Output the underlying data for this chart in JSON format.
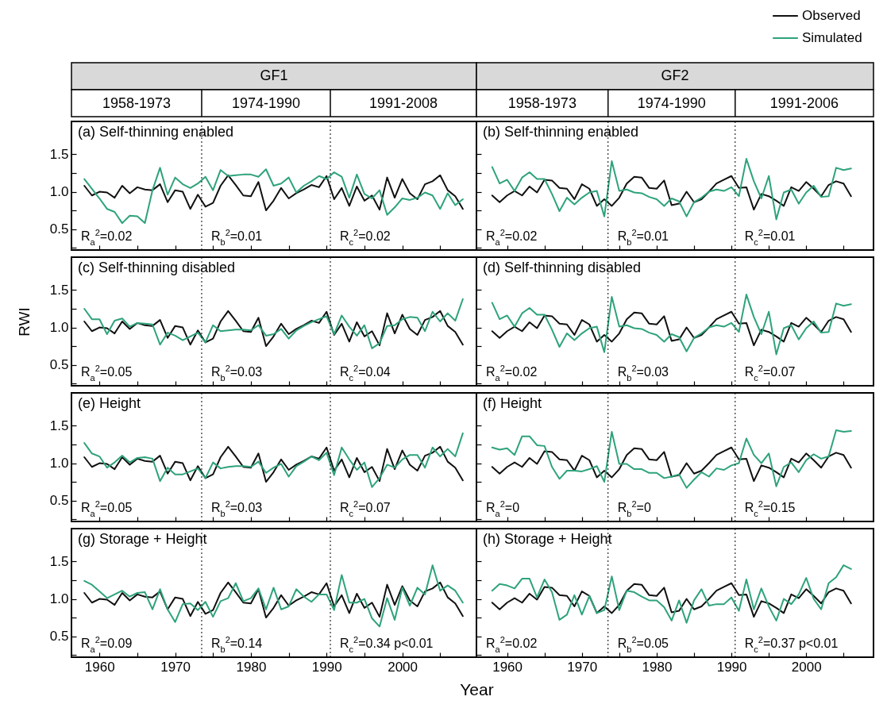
{
  "chart_data": [
    {
      "type": "line",
      "title": "GF1",
      "subtitle": "(a) Self-thinning enabled",
      "tick_labels": "y",
      "annotations": [
        "1958-1973",
        "1974-1990",
        "1991-2008",
        "R$_{a}$$^{2}$=0.02",
        "R$_{b}$$^{2}$=0.01",
        "R$_{c}$$^{2}$=0.02"
      ],
      "x": [
        1958,
        1959,
        1960,
        1961,
        1962,
        1963,
        1964,
        1965,
        1966,
        1967,
        1968,
        1969,
        1970,
        1971,
        1972,
        1973,
        1974,
        1975,
        1976,
        1977,
        1978,
        1979,
        1980,
        1981,
        1982,
        1983,
        1984,
        1985,
        1986,
        1987,
        1988,
        1989,
        1990,
        1991,
        1992,
        1993,
        1994,
        1995,
        1996,
        1997,
        1998,
        1999,
        2000,
        2001,
        2002,
        2003,
        2004,
        2005,
        2006,
        2007,
        2008
      ],
      "series": [
        {
          "color": "#111111",
          "values": [
            1.08,
            0.95,
            1.0,
            0.99,
            0.92,
            1.08,
            0.98,
            1.06,
            1.03,
            1.02,
            1.1,
            0.86,
            1.02,
            1.0,
            0.77,
            0.96,
            0.8,
            0.85,
            1.08,
            1.22,
            1.09,
            0.95,
            0.94,
            1.13,
            0.75,
            0.88,
            1.05,
            0.91,
            0.98,
            1.03,
            1.09,
            1.06,
            1.21,
            0.9,
            1.05,
            0.81,
            1.07,
            0.88,
            0.95,
            0.76,
            1.19,
            0.92,
            1.17,
            0.98,
            0.9,
            1.1,
            1.14,
            1.22,
            1.02,
            0.94,
            0.77
          ]
        },
        {
          "color": "#2ea37a",
          "values": [
            1.17,
            1.04,
            0.91,
            0.77,
            0.73,
            0.58,
            0.68,
            0.67,
            0.58,
            1.02,
            1.32,
            0.96,
            1.19,
            1.1,
            1.05,
            1.11,
            1.2,
            1.02,
            1.29,
            1.21,
            1.22,
            1.23,
            1.23,
            1.2,
            1.3,
            1.08,
            1.11,
            1.19,
            0.99,
            1.08,
            1.14,
            1.21,
            1.17,
            1.26,
            1.2,
            0.92,
            1.23,
            0.97,
            0.91,
            1.02,
            0.69,
            0.79,
            0.91,
            0.89,
            0.92,
            0.99,
            0.95,
            0.77,
            0.98,
            0.82,
            0.9
          ]
        }
      ],
      "ref_lines": [
        {
          "axis": "x",
          "value": 1973.5,
          "line_style": "dotted"
        },
        {
          "axis": "x",
          "value": 1990.5,
          "line_style": "dotted"
        }
      ],
      "xlim": [
        1956.3,
        2009.8
      ],
      "xticks": [
        {
          "value": 1960,
          "label": null
        },
        {
          "value": 1965,
          "label": null
        },
        {
          "value": 1970,
          "label": null
        },
        {
          "value": 1975,
          "label": null
        },
        {
          "value": 1980,
          "label": null
        },
        {
          "value": 1985,
          "label": null
        },
        {
          "value": 1990,
          "label": null
        },
        {
          "value": 1995,
          "label": null
        },
        {
          "value": 2000,
          "label": null
        },
        {
          "value": 2005,
          "label": null
        }
      ],
      "ylim": [
        0.22,
        1.94
      ],
      "yticks": [
        {
          "value": 0.25,
          "label": null
        },
        {
          "value": 0.5,
          "label": "0.5"
        },
        {
          "value": 0.75,
          "label": null
        },
        {
          "value": 1,
          "label": "1.0"
        },
        {
          "value": 1.25,
          "label": null
        },
        {
          "value": 1.5,
          "label": "1.5"
        }
      ]
    },
    {
      "type": "line",
      "title": "GF2",
      "subtitle": "(b) Self-thinning enabled",
      "legend": "top right",
      "tick_labels": false,
      "annotations": [
        "1958-1973",
        "1974-1990",
        "1991-2006",
        "R$_{a}$$^{2}$=0.02",
        "R$_{b}$$^{2}$=0.01",
        "R$_{c}$$^{2}$=0.01"
      ],
      "x": [
        1958,
        1959,
        1960,
        1961,
        1962,
        1963,
        1964,
        1965,
        1966,
        1967,
        1968,
        1969,
        1970,
        1971,
        1972,
        1973,
        1974,
        1975,
        1976,
        1977,
        1978,
        1979,
        1980,
        1981,
        1982,
        1983,
        1984,
        1985,
        1986,
        1987,
        1988,
        1989,
        1990,
        1991,
        1992,
        1993,
        1994,
        1995,
        1996,
        1997,
        1998,
        1999,
        2000,
        2001,
        2002,
        2003,
        2004,
        2005,
        2006
      ],
      "series": [
        {
          "name": "Observed",
          "color": "#111111",
          "values": [
            0.95,
            0.86,
            0.95,
            1.01,
            0.95,
            1.07,
            0.99,
            1.16,
            1.15,
            1.05,
            1.04,
            0.9,
            1.1,
            1.04,
            0.81,
            0.9,
            0.81,
            0.92,
            1.11,
            1.2,
            1.19,
            1.05,
            1.04,
            1.15,
            0.82,
            0.84,
            1.0,
            0.86,
            0.9,
            1.0,
            1.11,
            1.16,
            1.21,
            1.05,
            1.06,
            0.76,
            0.97,
            0.94,
            0.88,
            0.81,
            1.06,
            1.01,
            1.13,
            1.04,
            0.94,
            1.09,
            1.14,
            1.11,
            0.94
          ]
        },
        {
          "name": "Simulated",
          "color": "#2ea37a",
          "values": [
            1.33,
            1.11,
            1.16,
            1.01,
            1.19,
            1.26,
            1.17,
            1.17,
            0.97,
            0.74,
            0.92,
            0.83,
            0.92,
            0.99,
            1.01,
            0.67,
            1.41,
            1.01,
            1.03,
            0.99,
            0.98,
            0.93,
            0.9,
            0.81,
            0.91,
            0.87,
            0.67,
            0.86,
            0.92,
            1.0,
            1.03,
            1.01,
            1.06,
            0.94,
            1.44,
            1.14,
            0.91,
            1.21,
            0.63,
            0.99,
            1.03,
            0.84,
            0.99,
            1.08,
            0.93,
            0.94,
            1.32,
            1.29,
            1.31
          ]
        }
      ],
      "ref_lines": [
        {
          "axis": "x",
          "value": 1973.5,
          "line_style": "dotted"
        },
        {
          "axis": "x",
          "value": 1990.5,
          "line_style": "dotted"
        }
      ],
      "xlim": [
        1955.9,
        2009.0
      ],
      "xticks": [
        {
          "value": 1960,
          "label": null
        },
        {
          "value": 1965,
          "label": null
        },
        {
          "value": 1970,
          "label": null
        },
        {
          "value": 1975,
          "label": null
        },
        {
          "value": 1980,
          "label": null
        },
        {
          "value": 1985,
          "label": null
        },
        {
          "value": 1990,
          "label": null
        },
        {
          "value": 1995,
          "label": null
        },
        {
          "value": 2000,
          "label": null
        },
        {
          "value": 2005,
          "label": null
        }
      ],
      "ylim": [
        0.22,
        1.94
      ],
      "yticks": [
        {
          "value": 0.25,
          "label": null
        },
        {
          "value": 0.5,
          "label": null
        },
        {
          "value": 0.75,
          "label": null
        },
        {
          "value": 1,
          "label": null
        },
        {
          "value": 1.25,
          "label": null
        },
        {
          "value": 1.5,
          "label": null
        }
      ]
    },
    {
      "type": "line",
      "title": "(c) Self-thinning disabled",
      "ylabel": "RWI",
      "tick_labels": "y",
      "annotations": [
        "R$_{a}$$^{2}$=0.05",
        "R$_{b}$$^{2}$=0.03",
        "R$_{c}$$^{2}$=0.04"
      ],
      "x": [
        1958,
        1959,
        1960,
        1961,
        1962,
        1963,
        1964,
        1965,
        1966,
        1967,
        1968,
        1969,
        1970,
        1971,
        1972,
        1973,
        1974,
        1975,
        1976,
        1977,
        1978,
        1979,
        1980,
        1981,
        1982,
        1983,
        1984,
        1985,
        1986,
        1987,
        1988,
        1989,
        1990,
        1991,
        1992,
        1993,
        1994,
        1995,
        1996,
        1997,
        1998,
        1999,
        2000,
        2001,
        2002,
        2003,
        2004,
        2005,
        2006,
        2007,
        2008
      ],
      "series": [
        {
          "color": "#111111",
          "values": [
            1.08,
            0.95,
            1.0,
            0.99,
            0.92,
            1.08,
            0.98,
            1.06,
            1.03,
            1.02,
            1.1,
            0.86,
            1.02,
            1.0,
            0.77,
            0.96,
            0.8,
            0.85,
            1.08,
            1.22,
            1.09,
            0.95,
            0.94,
            1.13,
            0.75,
            0.88,
            1.05,
            0.91,
            0.98,
            1.03,
            1.09,
            1.06,
            1.21,
            0.9,
            1.05,
            0.81,
            1.07,
            0.88,
            0.95,
            0.76,
            1.19,
            0.92,
            1.17,
            0.98,
            0.9,
            1.1,
            1.14,
            1.22,
            1.02,
            0.94,
            0.77
          ]
        },
        {
          "color": "#2ea37a",
          "values": [
            1.25,
            1.11,
            1.11,
            0.91,
            1.09,
            1.12,
            1.01,
            1.06,
            1.05,
            1.04,
            0.77,
            0.93,
            0.89,
            0.83,
            0.88,
            0.93,
            0.8,
            1.03,
            0.95,
            0.96,
            0.97,
            0.97,
            0.96,
            1.03,
            0.89,
            0.91,
            0.98,
            0.85,
            0.96,
            1.02,
            1.07,
            1.11,
            1.15,
            0.91,
            1.16,
            1.01,
            0.89,
            1.03,
            0.72,
            0.79,
            1.02,
            1.03,
            1.11,
            1.14,
            1.13,
            0.95,
            1.21,
            1.08,
            1.19,
            1.09,
            1.38
          ]
        }
      ],
      "ref_lines": [
        {
          "axis": "x",
          "value": 1973.5,
          "line_style": "dotted"
        },
        {
          "axis": "x",
          "value": 1990.5,
          "line_style": "dotted"
        }
      ],
      "xlim": [
        1956.3,
        2009.8
      ],
      "xticks": [
        {
          "value": 1960,
          "label": null
        },
        {
          "value": 1965,
          "label": null
        },
        {
          "value": 1970,
          "label": null
        },
        {
          "value": 1975,
          "label": null
        },
        {
          "value": 1980,
          "label": null
        },
        {
          "value": 1985,
          "label": null
        },
        {
          "value": 1990,
          "label": null
        },
        {
          "value": 1995,
          "label": null
        },
        {
          "value": 2000,
          "label": null
        },
        {
          "value": 2005,
          "label": null
        }
      ],
      "ylim": [
        0.22,
        1.94
      ],
      "yticks": [
        {
          "value": 0.25,
          "label": null
        },
        {
          "value": 0.5,
          "label": "0.5"
        },
        {
          "value": 0.75,
          "label": null
        },
        {
          "value": 1,
          "label": "1.0"
        },
        {
          "value": 1.25,
          "label": null
        },
        {
          "value": 1.5,
          "label": "1.5"
        }
      ]
    },
    {
      "type": "line",
      "title": "(d) Self-thinning disabled",
      "tick_labels": false,
      "annotations": [
        "R$_{a}$$^{2}$=0.02",
        "R$_{b}$$^{2}$=0.03",
        "R$_{c}$$^{2}$=0.07"
      ],
      "x": [
        1958,
        1959,
        1960,
        1961,
        1962,
        1963,
        1964,
        1965,
        1966,
        1967,
        1968,
        1969,
        1970,
        1971,
        1972,
        1973,
        1974,
        1975,
        1976,
        1977,
        1978,
        1979,
        1980,
        1981,
        1982,
        1983,
        1984,
        1985,
        1986,
        1987,
        1988,
        1989,
        1990,
        1991,
        1992,
        1993,
        1994,
        1995,
        1996,
        1997,
        1998,
        1999,
        2000,
        2001,
        2002,
        2003,
        2004,
        2005,
        2006
      ],
      "series": [
        {
          "color": "#111111",
          "values": [
            0.95,
            0.86,
            0.95,
            1.01,
            0.95,
            1.07,
            0.99,
            1.16,
            1.15,
            1.05,
            1.04,
            0.9,
            1.1,
            1.04,
            0.81,
            0.9,
            0.81,
            0.92,
            1.11,
            1.2,
            1.19,
            1.05,
            1.04,
            1.15,
            0.82,
            0.84,
            1.0,
            0.86,
            0.9,
            1.0,
            1.11,
            1.16,
            1.21,
            1.05,
            1.06,
            0.76,
            0.97,
            0.94,
            0.88,
            0.81,
            1.06,
            1.01,
            1.13,
            1.04,
            0.94,
            1.09,
            1.14,
            1.11,
            0.94
          ]
        },
        {
          "color": "#2ea37a",
          "values": [
            1.33,
            1.11,
            1.16,
            1.01,
            1.19,
            1.26,
            1.17,
            1.17,
            0.97,
            0.74,
            0.92,
            0.83,
            0.92,
            0.99,
            1.01,
            0.67,
            1.41,
            1.01,
            1.03,
            0.99,
            0.98,
            0.93,
            0.9,
            0.81,
            0.91,
            0.87,
            0.68,
            0.86,
            0.92,
            1.0,
            1.03,
            1.01,
            1.06,
            0.94,
            1.44,
            1.14,
            0.91,
            1.21,
            0.64,
            0.99,
            1.03,
            0.84,
            0.99,
            1.08,
            0.93,
            0.94,
            1.32,
            1.29,
            1.31
          ]
        }
      ],
      "ref_lines": [
        {
          "axis": "x",
          "value": 1973.5,
          "line_style": "dotted"
        },
        {
          "axis": "x",
          "value": 1990.5,
          "line_style": "dotted"
        }
      ],
      "xlim": [
        1955.9,
        2009.0
      ],
      "xticks": [
        {
          "value": 1960,
          "label": null
        },
        {
          "value": 1965,
          "label": null
        },
        {
          "value": 1970,
          "label": null
        },
        {
          "value": 1975,
          "label": null
        },
        {
          "value": 1980,
          "label": null
        },
        {
          "value": 1985,
          "label": null
        },
        {
          "value": 1990,
          "label": null
        },
        {
          "value": 1995,
          "label": null
        },
        {
          "value": 2000,
          "label": null
        },
        {
          "value": 2005,
          "label": null
        }
      ],
      "ylim": [
        0.22,
        1.94
      ],
      "yticks": [
        {
          "value": 0.25,
          "label": null
        },
        {
          "value": 0.5,
          "label": null
        },
        {
          "value": 0.75,
          "label": null
        },
        {
          "value": 1,
          "label": null
        },
        {
          "value": 1.25,
          "label": null
        },
        {
          "value": 1.5,
          "label": null
        }
      ]
    },
    {
      "type": "line",
      "title": "(e) Height",
      "tick_labels": "y",
      "annotations": [
        "R$_{a}$$^{2}$=0.05",
        "R$_{b}$$^{2}$=0.03",
        "R$_{c}$$^{2}$=0.07"
      ],
      "x": [
        1958,
        1959,
        1960,
        1961,
        1962,
        1963,
        1964,
        1965,
        1966,
        1967,
        1968,
        1969,
        1970,
        1971,
        1972,
        1973,
        1974,
        1975,
        1976,
        1977,
        1978,
        1979,
        1980,
        1981,
        1982,
        1983,
        1984,
        1985,
        1986,
        1987,
        1988,
        1989,
        1990,
        1991,
        1992,
        1993,
        1994,
        1995,
        1996,
        1997,
        1998,
        1999,
        2000,
        2001,
        2002,
        2003,
        2004,
        2005,
        2006,
        2007,
        2008
      ],
      "series": [
        {
          "color": "#111111",
          "values": [
            1.08,
            0.95,
            1.0,
            0.99,
            0.92,
            1.08,
            0.98,
            1.06,
            1.03,
            1.02,
            1.1,
            0.86,
            1.02,
            1.0,
            0.77,
            0.96,
            0.8,
            0.85,
            1.08,
            1.22,
            1.09,
            0.95,
            0.94,
            1.13,
            0.75,
            0.88,
            1.05,
            0.91,
            0.98,
            1.03,
            1.09,
            1.06,
            1.21,
            0.9,
            1.05,
            0.81,
            1.07,
            0.88,
            0.95,
            0.76,
            1.19,
            0.92,
            1.17,
            0.98,
            0.9,
            1.1,
            1.14,
            1.22,
            1.02,
            0.94,
            0.77
          ]
        },
        {
          "color": "#2ea37a",
          "values": [
            1.27,
            1.13,
            1.09,
            0.94,
            1.01,
            1.1,
            1.01,
            1.07,
            1.08,
            1.06,
            0.76,
            0.94,
            0.85,
            0.85,
            0.89,
            0.93,
            0.8,
            1.01,
            0.93,
            0.95,
            0.96,
            0.96,
            0.95,
            1.02,
            0.87,
            0.94,
            0.99,
            0.82,
            0.96,
            1.02,
            1.09,
            1.04,
            1.14,
            0.84,
            1.21,
            1.05,
            0.91,
            1.01,
            0.68,
            0.8,
            0.98,
            0.94,
            1.05,
            1.11,
            1.11,
            0.94,
            1.21,
            1.09,
            1.19,
            1.09,
            1.4
          ]
        }
      ],
      "ref_lines": [
        {
          "axis": "x",
          "value": 1973.5,
          "line_style": "dotted"
        },
        {
          "axis": "x",
          "value": 1990.5,
          "line_style": "dotted"
        }
      ],
      "xlim": [
        1956.3,
        2009.8
      ],
      "xticks": [
        {
          "value": 1960,
          "label": null
        },
        {
          "value": 1965,
          "label": null
        },
        {
          "value": 1970,
          "label": null
        },
        {
          "value": 1975,
          "label": null
        },
        {
          "value": 1980,
          "label": null
        },
        {
          "value": 1985,
          "label": null
        },
        {
          "value": 1990,
          "label": null
        },
        {
          "value": 1995,
          "label": null
        },
        {
          "value": 2000,
          "label": null
        },
        {
          "value": 2005,
          "label": null
        }
      ],
      "ylim": [
        0.22,
        1.94
      ],
      "yticks": [
        {
          "value": 0.25,
          "label": null
        },
        {
          "value": 0.5,
          "label": "0.5"
        },
        {
          "value": 0.75,
          "label": null
        },
        {
          "value": 1,
          "label": "1.0"
        },
        {
          "value": 1.25,
          "label": null
        },
        {
          "value": 1.5,
          "label": "1.5"
        }
      ]
    },
    {
      "type": "line",
      "title": "(f) Height",
      "tick_labels": false,
      "annotations": [
        "R$_{a}$$^{2}$=0",
        "R$_{b}$$^{2}$=0",
        "R$_{c}$$^{2}$=0.15"
      ],
      "x": [
        1958,
        1959,
        1960,
        1961,
        1962,
        1963,
        1964,
        1965,
        1966,
        1967,
        1968,
        1969,
        1970,
        1971,
        1972,
        1973,
        1974,
        1975,
        1976,
        1977,
        1978,
        1979,
        1980,
        1981,
        1982,
        1983,
        1984,
        1985,
        1986,
        1987,
        1988,
        1989,
        1990,
        1991,
        1992,
        1993,
        1994,
        1995,
        1996,
        1997,
        1998,
        1999,
        2000,
        2001,
        2002,
        2003,
        2004,
        2005,
        2006
      ],
      "series": [
        {
          "color": "#111111",
          "values": [
            0.95,
            0.86,
            0.95,
            1.01,
            0.95,
            1.07,
            0.99,
            1.16,
            1.15,
            1.05,
            1.04,
            0.9,
            1.1,
            1.04,
            0.81,
            0.9,
            0.81,
            0.92,
            1.11,
            1.2,
            1.19,
            1.05,
            1.04,
            1.15,
            0.82,
            0.84,
            1.0,
            0.86,
            0.9,
            1.0,
            1.11,
            1.16,
            1.21,
            1.05,
            1.06,
            0.76,
            0.97,
            0.94,
            0.88,
            0.81,
            1.06,
            1.01,
            1.13,
            1.04,
            0.94,
            1.09,
            1.14,
            1.11,
            0.94
          ]
        },
        {
          "color": "#2ea37a",
          "values": [
            1.21,
            1.18,
            1.2,
            1.11,
            1.36,
            1.36,
            1.24,
            1.23,
            0.95,
            0.79,
            0.9,
            0.9,
            0.89,
            0.92,
            0.96,
            0.75,
            1.42,
            0.99,
            0.99,
            0.92,
            0.92,
            0.87,
            0.87,
            0.8,
            0.82,
            0.85,
            0.67,
            0.78,
            0.88,
            0.82,
            0.93,
            0.91,
            0.97,
            1.0,
            1.33,
            1.11,
            1.0,
            1.13,
            0.69,
            0.95,
            1.01,
            0.88,
            1.04,
            1.12,
            1.06,
            1.09,
            1.44,
            1.42,
            1.43
          ]
        }
      ],
      "ref_lines": [
        {
          "axis": "x",
          "value": 1973.5,
          "line_style": "dotted"
        },
        {
          "axis": "x",
          "value": 1990.5,
          "line_style": "dotted"
        }
      ],
      "xlim": [
        1955.9,
        2009.0
      ],
      "xticks": [
        {
          "value": 1960,
          "label": null
        },
        {
          "value": 1965,
          "label": null
        },
        {
          "value": 1970,
          "label": null
        },
        {
          "value": 1975,
          "label": null
        },
        {
          "value": 1980,
          "label": null
        },
        {
          "value": 1985,
          "label": null
        },
        {
          "value": 1990,
          "label": null
        },
        {
          "value": 1995,
          "label": null
        },
        {
          "value": 2000,
          "label": null
        },
        {
          "value": 2005,
          "label": null
        }
      ],
      "ylim": [
        0.22,
        1.94
      ],
      "yticks": [
        {
          "value": 0.25,
          "label": null
        },
        {
          "value": 0.5,
          "label": null
        },
        {
          "value": 0.75,
          "label": null
        },
        {
          "value": 1,
          "label": null
        },
        {
          "value": 1.25,
          "label": null
        },
        {
          "value": 1.5,
          "label": null
        }
      ]
    },
    {
      "type": "line",
      "title": "(g) Storage + Height",
      "xlabel": "Year",
      "annotations": [
        "R$_{a}$$^{2}$=0.09",
        "R$_{b}$$^{2}$=0.14",
        "R$_{c}$$^{2}$=0.34 p<0.01"
      ],
      "x": [
        1958,
        1959,
        1960,
        1961,
        1962,
        1963,
        1964,
        1965,
        1966,
        1967,
        1968,
        1969,
        1970,
        1971,
        1972,
        1973,
        1974,
        1975,
        1976,
        1977,
        1978,
        1979,
        1980,
        1981,
        1982,
        1983,
        1984,
        1985,
        1986,
        1987,
        1988,
        1989,
        1990,
        1991,
        1992,
        1993,
        1994,
        1995,
        1996,
        1997,
        1998,
        1999,
        2000,
        2001,
        2002,
        2003,
        2004,
        2005,
        2006,
        2007,
        2008
      ],
      "series": [
        {
          "color": "#111111",
          "values": [
            1.08,
            0.95,
            1.0,
            0.99,
            0.92,
            1.08,
            0.98,
            1.06,
            1.03,
            1.02,
            1.1,
            0.86,
            1.02,
            1.0,
            0.77,
            0.96,
            0.8,
            0.85,
            1.08,
            1.22,
            1.09,
            0.95,
            0.94,
            1.13,
            0.75,
            0.88,
            1.05,
            0.91,
            0.98,
            1.03,
            1.09,
            1.06,
            1.21,
            0.9,
            1.05,
            0.81,
            1.07,
            0.88,
            0.95,
            0.76,
            1.19,
            0.92,
            1.17,
            0.98,
            0.9,
            1.1,
            1.14,
            1.22,
            1.02,
            0.94,
            0.77
          ]
        },
        {
          "color": "#2ea37a",
          "values": [
            1.24,
            1.19,
            1.1,
            1.01,
            1.06,
            1.11,
            1.03,
            1.08,
            1.09,
            0.86,
            1.13,
            0.86,
            0.69,
            0.93,
            0.94,
            0.85,
            0.96,
            0.76,
            0.97,
            1.01,
            1.21,
            0.97,
            1.01,
            1.14,
            0.86,
            1.15,
            0.86,
            0.9,
            1.13,
            1.03,
            0.96,
            1.06,
            1.06,
            0.85,
            1.32,
            0.95,
            0.95,
            1.0,
            0.74,
            0.63,
            1.01,
            0.72,
            1.15,
            0.91,
            1.15,
            1.06,
            1.45,
            1.11,
            1.18,
            1.11,
            0.95
          ]
        }
      ],
      "ref_lines": [
        {
          "axis": "x",
          "value": 1973.5,
          "line_style": "dotted"
        },
        {
          "axis": "x",
          "value": 1990.5,
          "line_style": "dotted"
        }
      ],
      "xlim": [
        1956.3,
        2009.8
      ],
      "xticks": [
        1960,
        {
          "value": 1965,
          "label": null
        },
        1970,
        {
          "value": 1975,
          "label": null
        },
        1980,
        {
          "value": 1985,
          "label": null
        },
        1990,
        {
          "value": 1995,
          "label": null
        },
        2000,
        {
          "value": 2005,
          "label": null
        }
      ],
      "ylim": [
        0.22,
        1.94
      ],
      "yticks": [
        {
          "value": 0.25,
          "label": null
        },
        {
          "value": 0.5,
          "label": "0.5"
        },
        {
          "value": 0.75,
          "label": null
        },
        {
          "value": 1,
          "label": "1.0"
        },
        {
          "value": 1.25,
          "label": null
        },
        {
          "value": 1.5,
          "label": "1.5"
        }
      ]
    },
    {
      "type": "line",
      "title": "(h) Storage  + Height",
      "tick_labels": "x",
      "annotations": [
        "R$_{a}$$^{2}$=0.02",
        "R$_{b}$$^{2}$=0.05",
        "R$_{c}$$^{2}$=0.37 p<0.01"
      ],
      "x": [
        1958,
        1959,
        1960,
        1961,
        1962,
        1963,
        1964,
        1965,
        1966,
        1967,
        1968,
        1969,
        1970,
        1971,
        1972,
        1973,
        1974,
        1975,
        1976,
        1977,
        1978,
        1979,
        1980,
        1981,
        1982,
        1983,
        1984,
        1985,
        1986,
        1987,
        1988,
        1989,
        1990,
        1991,
        1992,
        1993,
        1994,
        1995,
        1996,
        1997,
        1998,
        1999,
        2000,
        2001,
        2002,
        2003,
        2004,
        2005,
        2006
      ],
      "series": [
        {
          "color": "#111111",
          "values": [
            0.95,
            0.86,
            0.95,
            1.01,
            0.95,
            1.07,
            0.99,
            1.16,
            1.15,
            1.05,
            1.04,
            0.9,
            1.1,
            1.04,
            0.81,
            0.9,
            0.81,
            0.92,
            1.11,
            1.2,
            1.19,
            1.05,
            1.04,
            1.15,
            0.82,
            0.84,
            1.0,
            0.86,
            0.9,
            1.0,
            1.11,
            1.16,
            1.21,
            1.05,
            1.06,
            0.76,
            0.97,
            0.94,
            0.88,
            0.81,
            1.06,
            1.01,
            1.13,
            1.04,
            0.94,
            1.09,
            1.14,
            1.11,
            0.94
          ]
        },
        {
          "color": "#2ea37a",
          "values": [
            1.11,
            1.2,
            1.18,
            1.14,
            1.27,
            1.27,
            1.02,
            1.26,
            1.09,
            0.72,
            0.79,
            1.05,
            0.79,
            1.04,
            0.81,
            0.85,
            1.3,
            0.85,
            1.11,
            1.09,
            1.03,
            0.98,
            0.98,
            0.89,
            0.71,
            0.98,
            0.68,
            0.98,
            1.13,
            0.91,
            0.93,
            0.93,
            1.02,
            0.84,
            1.26,
            0.86,
            1.14,
            0.9,
            0.71,
            1.0,
            0.93,
            1.06,
            1.28,
            1.0,
            0.86,
            1.21,
            1.29,
            1.45,
            1.4
          ]
        }
      ],
      "ref_lines": [
        {
          "axis": "x",
          "value": 1973.5,
          "line_style": "dotted"
        },
        {
          "axis": "x",
          "value": 1990.5,
          "line_style": "dotted"
        }
      ],
      "xlim": [
        1955.9,
        2009.0
      ],
      "xticks": [
        1960,
        {
          "value": 1965,
          "label": null
        },
        1970,
        {
          "value": 1975,
          "label": null
        },
        1980,
        {
          "value": 1985,
          "label": null
        },
        1990,
        {
          "value": 1995,
          "label": null
        },
        2000,
        {
          "value": 2005,
          "label": null
        }
      ],
      "ylim": [
        0.22,
        1.94
      ],
      "yticks": [
        {
          "value": 0.25,
          "label": null
        },
        {
          "value": 0.5,
          "label": null
        },
        {
          "value": 0.75,
          "label": null
        },
        {
          "value": 1,
          "label": null
        },
        {
          "value": 1.25,
          "label": null
        },
        {
          "value": 1.5,
          "label": null
        }
      ]
    }
  ]
}
